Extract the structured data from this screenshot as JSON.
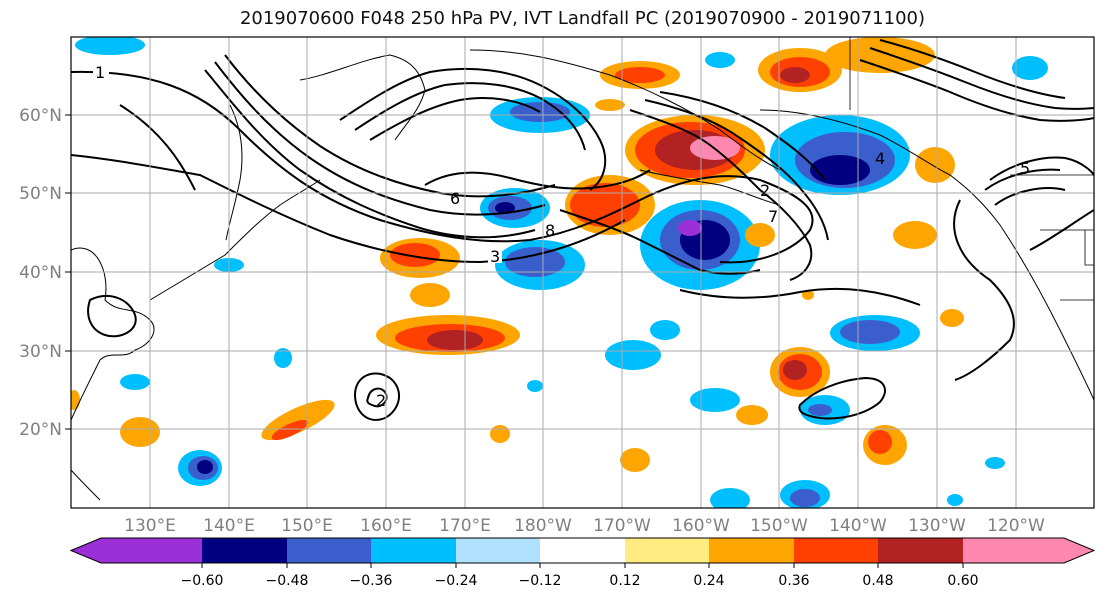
{
  "title": "2019070600 F048 250 hPa PV, IVT Landfall PC (2019070900 - 2019071100)",
  "lat_labels": [
    "60°N",
    "50°N",
    "40°N",
    "30°N",
    "20°N"
  ],
  "lon_labels": [
    "130°E",
    "140°E",
    "150°E",
    "160°E",
    "170°E",
    "180°W",
    "170°W",
    "160°W",
    "150°W",
    "140°W",
    "130°W",
    "120°W"
  ],
  "colorbar": {
    "ticks": [
      "−0.60",
      "−0.48",
      "−0.36",
      "−0.24",
      "−0.12",
      "0.12",
      "0.24",
      "0.36",
      "0.48",
      "0.60"
    ],
    "colors": [
      "#9b30d9",
      "#000080",
      "#3a5fcd",
      "#00bfff",
      "#b0e2ff",
      "#ffffff",
      "#ffeb80",
      "#ffa500",
      "#ff4000",
      "#b22222",
      "#ff88b0"
    ]
  },
  "contour_labels": [
    "1",
    "6",
    "8",
    "3",
    "2",
    "5",
    "7",
    "4",
    "2"
  ]
}
